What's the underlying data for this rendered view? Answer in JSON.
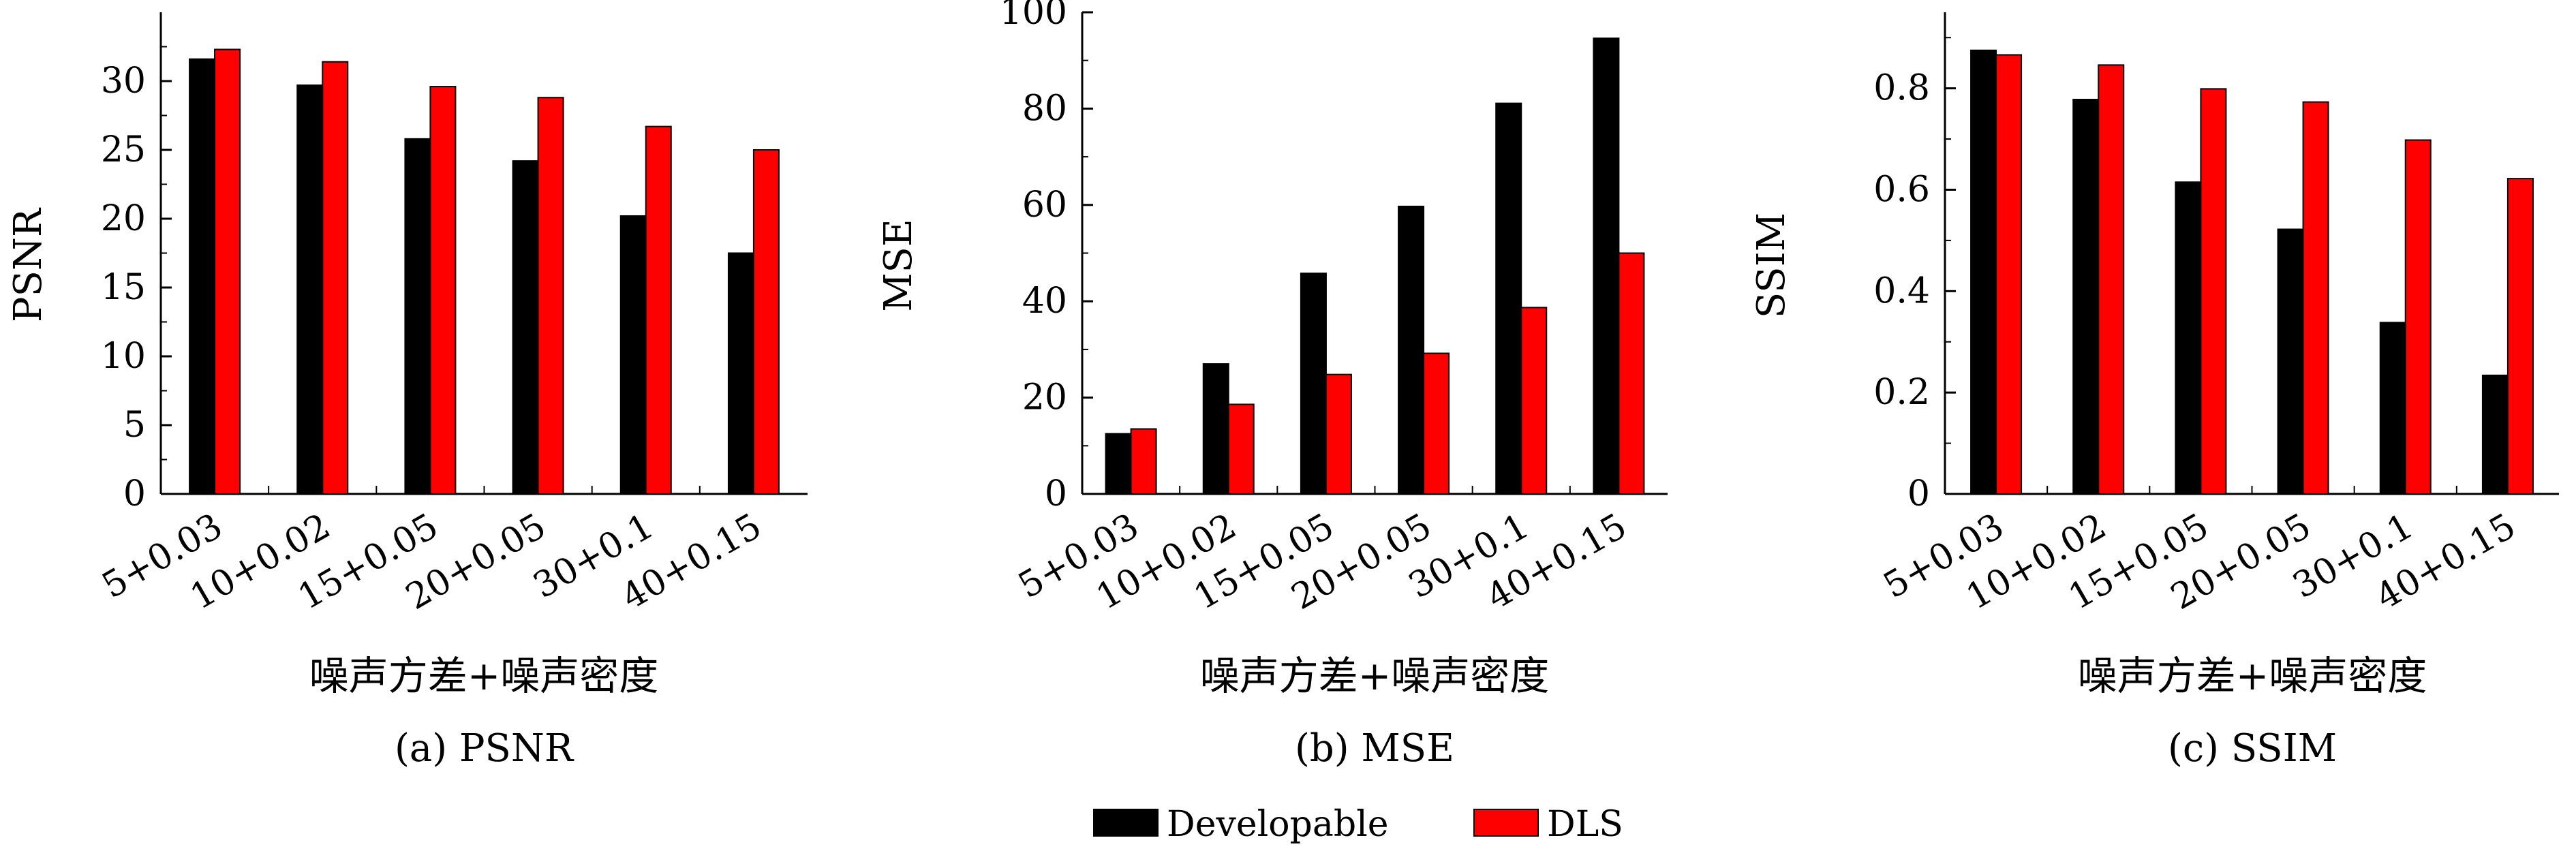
{
  "colors": {
    "dev": "#000000",
    "dls": "#ff0000"
  },
  "legend": [
    {
      "name": "Developable",
      "color": "#000000"
    },
    {
      "name": "DLS",
      "color": "#ff0000"
    }
  ],
  "chart_data": [
    {
      "type": "bar",
      "caption": "(a) PSNR",
      "ylabel": "PSNR",
      "xlabel": "噪声方差+噪声密度",
      "categories": [
        "5+0.03",
        "10+0.02",
        "15+0.05",
        "20+0.05",
        "30+0.1",
        "40+0.15"
      ],
      "series": [
        {
          "name": "Developable",
          "values": [
            31.6,
            29.7,
            25.8,
            24.2,
            20.2,
            17.5
          ]
        },
        {
          "name": "DLS",
          "values": [
            32.3,
            31.4,
            29.6,
            28.8,
            26.7,
            25.0
          ]
        }
      ],
      "ylim": [
        0,
        35
      ],
      "yticks": [
        0,
        5,
        10,
        15,
        20,
        25,
        30
      ],
      "ytick_labels": [
        "0",
        "5",
        "10",
        "15",
        "20",
        "25",
        "30"
      ]
    },
    {
      "type": "bar",
      "caption": "(b) MSE",
      "ylabel": "MSE",
      "xlabel": "噪声方差+噪声密度",
      "categories": [
        "5+0.03",
        "10+0.02",
        "15+0.05",
        "20+0.05",
        "30+0.1",
        "40+0.15"
      ],
      "series": [
        {
          "name": "Developable",
          "values": [
            12.5,
            27.0,
            45.8,
            59.7,
            81.1,
            94.6
          ]
        },
        {
          "name": "DLS",
          "values": [
            13.5,
            18.6,
            24.8,
            29.2,
            38.7,
            50.0
          ]
        }
      ],
      "ylim": [
        0,
        100
      ],
      "yticks": [
        0,
        20,
        40,
        60,
        80,
        100
      ],
      "ytick_labels": [
        "0",
        "20",
        "40",
        "60",
        "80",
        "100"
      ]
    },
    {
      "type": "bar",
      "caption": "(c) SSIM",
      "ylabel": "SSIM",
      "xlabel": "噪声方差+噪声密度",
      "categories": [
        "5+0.03",
        "10+0.02",
        "15+0.05",
        "20+0.05",
        "30+0.1",
        "40+0.15"
      ],
      "series": [
        {
          "name": "Developable",
          "values": [
            0.875,
            0.778,
            0.615,
            0.522,
            0.338,
            0.234
          ]
        },
        {
          "name": "DLS",
          "values": [
            0.866,
            0.846,
            0.799,
            0.773,
            0.698,
            0.622
          ]
        }
      ],
      "ylim": [
        0,
        0.95
      ],
      "yticks": [
        0,
        0.2,
        0.4,
        0.6,
        0.8
      ],
      "ytick_labels": [
        "0",
        "0.2",
        "0.4",
        "0.6",
        "0.8"
      ]
    }
  ]
}
